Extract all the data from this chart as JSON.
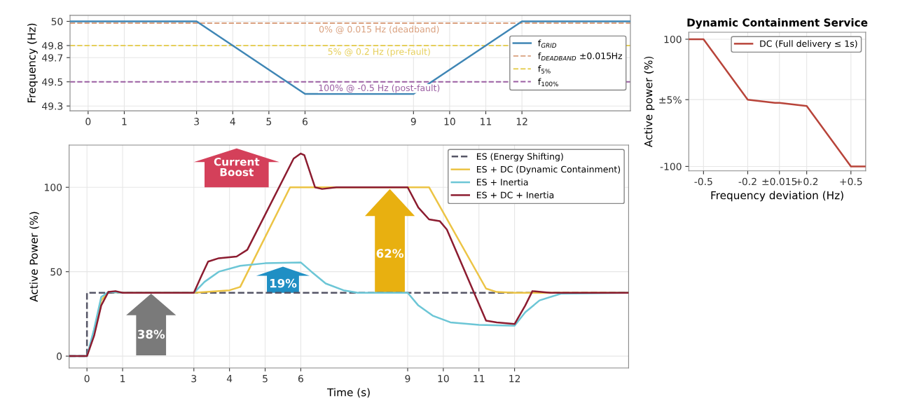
{
  "chart_data": [
    {
      "type": "line",
      "ylabel": "Frequency (Hz)",
      "xlim": [
        -0.5,
        15
      ],
      "xticks": [
        0,
        1,
        3,
        4,
        5,
        6,
        9,
        10,
        11,
        12
      ],
      "ylim": [
        49.26,
        50.05
      ],
      "yticks": [
        49.3,
        49.5,
        49.7,
        49.8,
        50
      ],
      "grid": true,
      "legend": "right",
      "series": [
        {
          "name": "f$_{GRID}$",
          "color": "#3f86b5",
          "x": [
            -0.5,
            3,
            6,
            9,
            12,
            15
          ],
          "values": [
            50,
            50,
            49.4,
            49.4,
            50,
            50
          ]
        }
      ],
      "ref_lines": [
        {
          "axis": "y",
          "value": 49.985,
          "label": "f$_{DEADBAND}$ ±0.015Hz",
          "color": "#d9a07e",
          "line_style": "dashed"
        },
        {
          "axis": "y",
          "value": 49.8,
          "label": "f$_{5%}$",
          "color": "#e6cf5a",
          "line_style": "dashed"
        },
        {
          "axis": "y",
          "value": 49.5,
          "label": "f$_{100%}$",
          "color": "#9b5fa3",
          "line_style": "dashed"
        }
      ],
      "annotations": [
        "0% @ 0.015 Hz (deadband)",
        "5% @ 0.2 Hz (pre-fault)",
        "100% @ -0.5 Hz (post-fault)"
      ]
    },
    {
      "type": "line",
      "title": "Dynamic Containment Service",
      "xlabel": "Frequency deviation (Hz)",
      "ylabel": "Active power (%)",
      "xlim": [
        -0.6,
        0.6
      ],
      "xticks": [
        {
          "value": -0.5,
          "label": "-0.5"
        },
        {
          "value": -0.2,
          "label": "-0.2"
        },
        {
          "value": 0.015,
          "label": "±0.015"
        },
        {
          "value": 0.2,
          "label": "+0.2"
        },
        {
          "value": 0.5,
          "label": "+0.5"
        }
      ],
      "ylim": [
        -107,
        111
      ],
      "yticks": [
        -100,
        {
          "value": 5,
          "label": "±5%"
        },
        100
      ],
      "grid": true,
      "legend": "top right",
      "series": [
        {
          "name": "DC (Full delivery ≤ 1s)",
          "color": "#b8443a",
          "x": [
            -0.6,
            -0.5,
            -0.2,
            -0.015,
            0.015,
            0.2,
            0.5,
            0.6
          ],
          "values": [
            100,
            100,
            5,
            0,
            0,
            -5,
            -100,
            -100
          ]
        }
      ]
    },
    {
      "type": "line",
      "xlabel": "Time (s)",
      "ylabel": "Active Power (%)",
      "xlim": [
        -0.5,
        15.2
      ],
      "xticks": [
        0,
        1,
        3,
        4,
        5,
        6,
        9,
        10,
        11,
        12
      ],
      "ylim": [
        -7,
        125
      ],
      "yticks": [
        0,
        50,
        100
      ],
      "grid": true,
      "legend": "top right",
      "series": [
        {
          "name": "ES (Energy Shifting)",
          "color": "#555566",
          "line_style": "dashed",
          "x": [
            -0.5,
            0,
            0,
            15.2
          ],
          "values": [
            0,
            0,
            37.5,
            37.5
          ]
        },
        {
          "name": "ES + DC (Dynamic Containment)",
          "color": "#ecc445",
          "x": [
            0.2,
            0.4,
            0.6,
            1,
            3,
            4,
            4.3,
            5.7,
            9.6,
            11.2,
            11.5,
            12,
            15.2
          ],
          "values": [
            15,
            33,
            38,
            37.5,
            37.5,
            39,
            41,
            100,
            100,
            40,
            38,
            37.5,
            37.5
          ]
        },
        {
          "name": "ES + Inertia",
          "color": "#6cc6d6",
          "x": [
            -0.5,
            0,
            0.2,
            0.4,
            0.6,
            1,
            3,
            3.3,
            3.7,
            4.3,
            5,
            6,
            6.3,
            6.7,
            7.2,
            7.6,
            9,
            9.3,
            9.7,
            10.2,
            11,
            12,
            12.3,
            12.7,
            13.3,
            15.2
          ],
          "values": [
            0,
            0,
            16,
            35,
            38,
            37.5,
            37.5,
            44,
            50,
            53.5,
            55,
            55.5,
            50,
            43,
            39,
            37.5,
            37.5,
            30,
            24,
            20,
            18.5,
            18,
            26,
            33,
            37,
            37.5
          ]
        },
        {
          "name": "ES + DC + Inertia",
          "color": "#8c1c30",
          "x": [
            -0.5,
            0,
            0.2,
            0.4,
            0.6,
            0.8,
            1,
            3,
            3.2,
            3.4,
            3.7,
            4.2,
            4.5,
            5.8,
            6,
            6.1,
            6.4,
            6.6,
            7,
            9,
            9.3,
            9.6,
            9.9,
            10.1,
            11.2,
            11.5,
            12,
            12.3,
            12.5,
            13,
            15.2
          ],
          "values": [
            0,
            0,
            12,
            30,
            38,
            38.5,
            37.5,
            37.5,
            47,
            56,
            58,
            59,
            63,
            117,
            120,
            119,
            100,
            99,
            100,
            100,
            88,
            81,
            80,
            75,
            21,
            20,
            19,
            30,
            38.5,
            37.5,
            37.5
          ]
        }
      ],
      "annotations": [
        "38%",
        "19%",
        "62%",
        "Current\nBoost"
      ]
    }
  ]
}
